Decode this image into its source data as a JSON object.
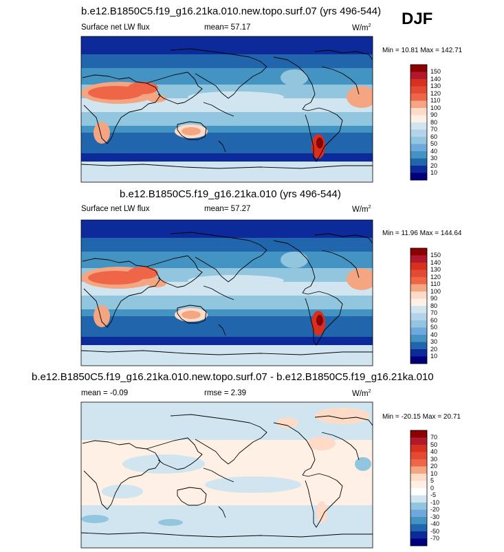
{
  "season": "DJF",
  "palette": {
    "dark_red": "#8b0000",
    "red": "#d7301f",
    "orange": "#ef6548",
    "light_orange": "#f4a582",
    "peach": "#fddbc7",
    "cream": "#fef0e4",
    "pale_blue": "#d1e5f0",
    "light_blue": "#92c5de",
    "mid_blue": "#4393c3",
    "blue": "#2166ac",
    "deep_blue": "#0d2a9a",
    "navy": "#00007a"
  },
  "panels": [
    {
      "title": "b.e12.B1850C5.f19_g16.21ka.010.new.topo.surf.07 (yrs 496-544)",
      "left_label": "Surface net LW flux",
      "center_label": "mean=  57.17",
      "units": "W/m",
      "units_sup": "2",
      "minmax": "Min =  10.81 Max = 142.71",
      "colorbar_labels": [
        "150",
        "140",
        "130",
        "120",
        "110",
        "100",
        "90",
        "80",
        "70",
        "60",
        "50",
        "40",
        "30",
        "20",
        "10"
      ]
    },
    {
      "title": "b.e12.B1850C5.f19_g16.21ka.010 (yrs 496-544)",
      "left_label": "Surface net LW flux",
      "center_label": "mean=  57.27",
      "units": "W/m",
      "units_sup": "2",
      "minmax": "Min =  11.96 Max = 144.64",
      "colorbar_labels": [
        "150",
        "140",
        "130",
        "120",
        "110",
        "100",
        "90",
        "80",
        "70",
        "60",
        "50",
        "40",
        "30",
        "20",
        "10"
      ]
    },
    {
      "title": "b.e12.B1850C5.f19_g16.21ka.010.new.topo.surf.07 - b.e12.B1850C5.f19_g16.21ka.010",
      "left_label": "mean =  -0.09",
      "center_label": "rmse =   2.39",
      "units": "W/m",
      "units_sup": "2",
      "minmax": "Min = -20.15 Max =  20.71",
      "colorbar_labels": [
        "70",
        "50",
        "40",
        "30",
        "20",
        "10",
        "5",
        "0",
        "-5",
        "-10",
        "-20",
        "-30",
        "-40",
        "-50",
        "-70"
      ]
    }
  ]
}
